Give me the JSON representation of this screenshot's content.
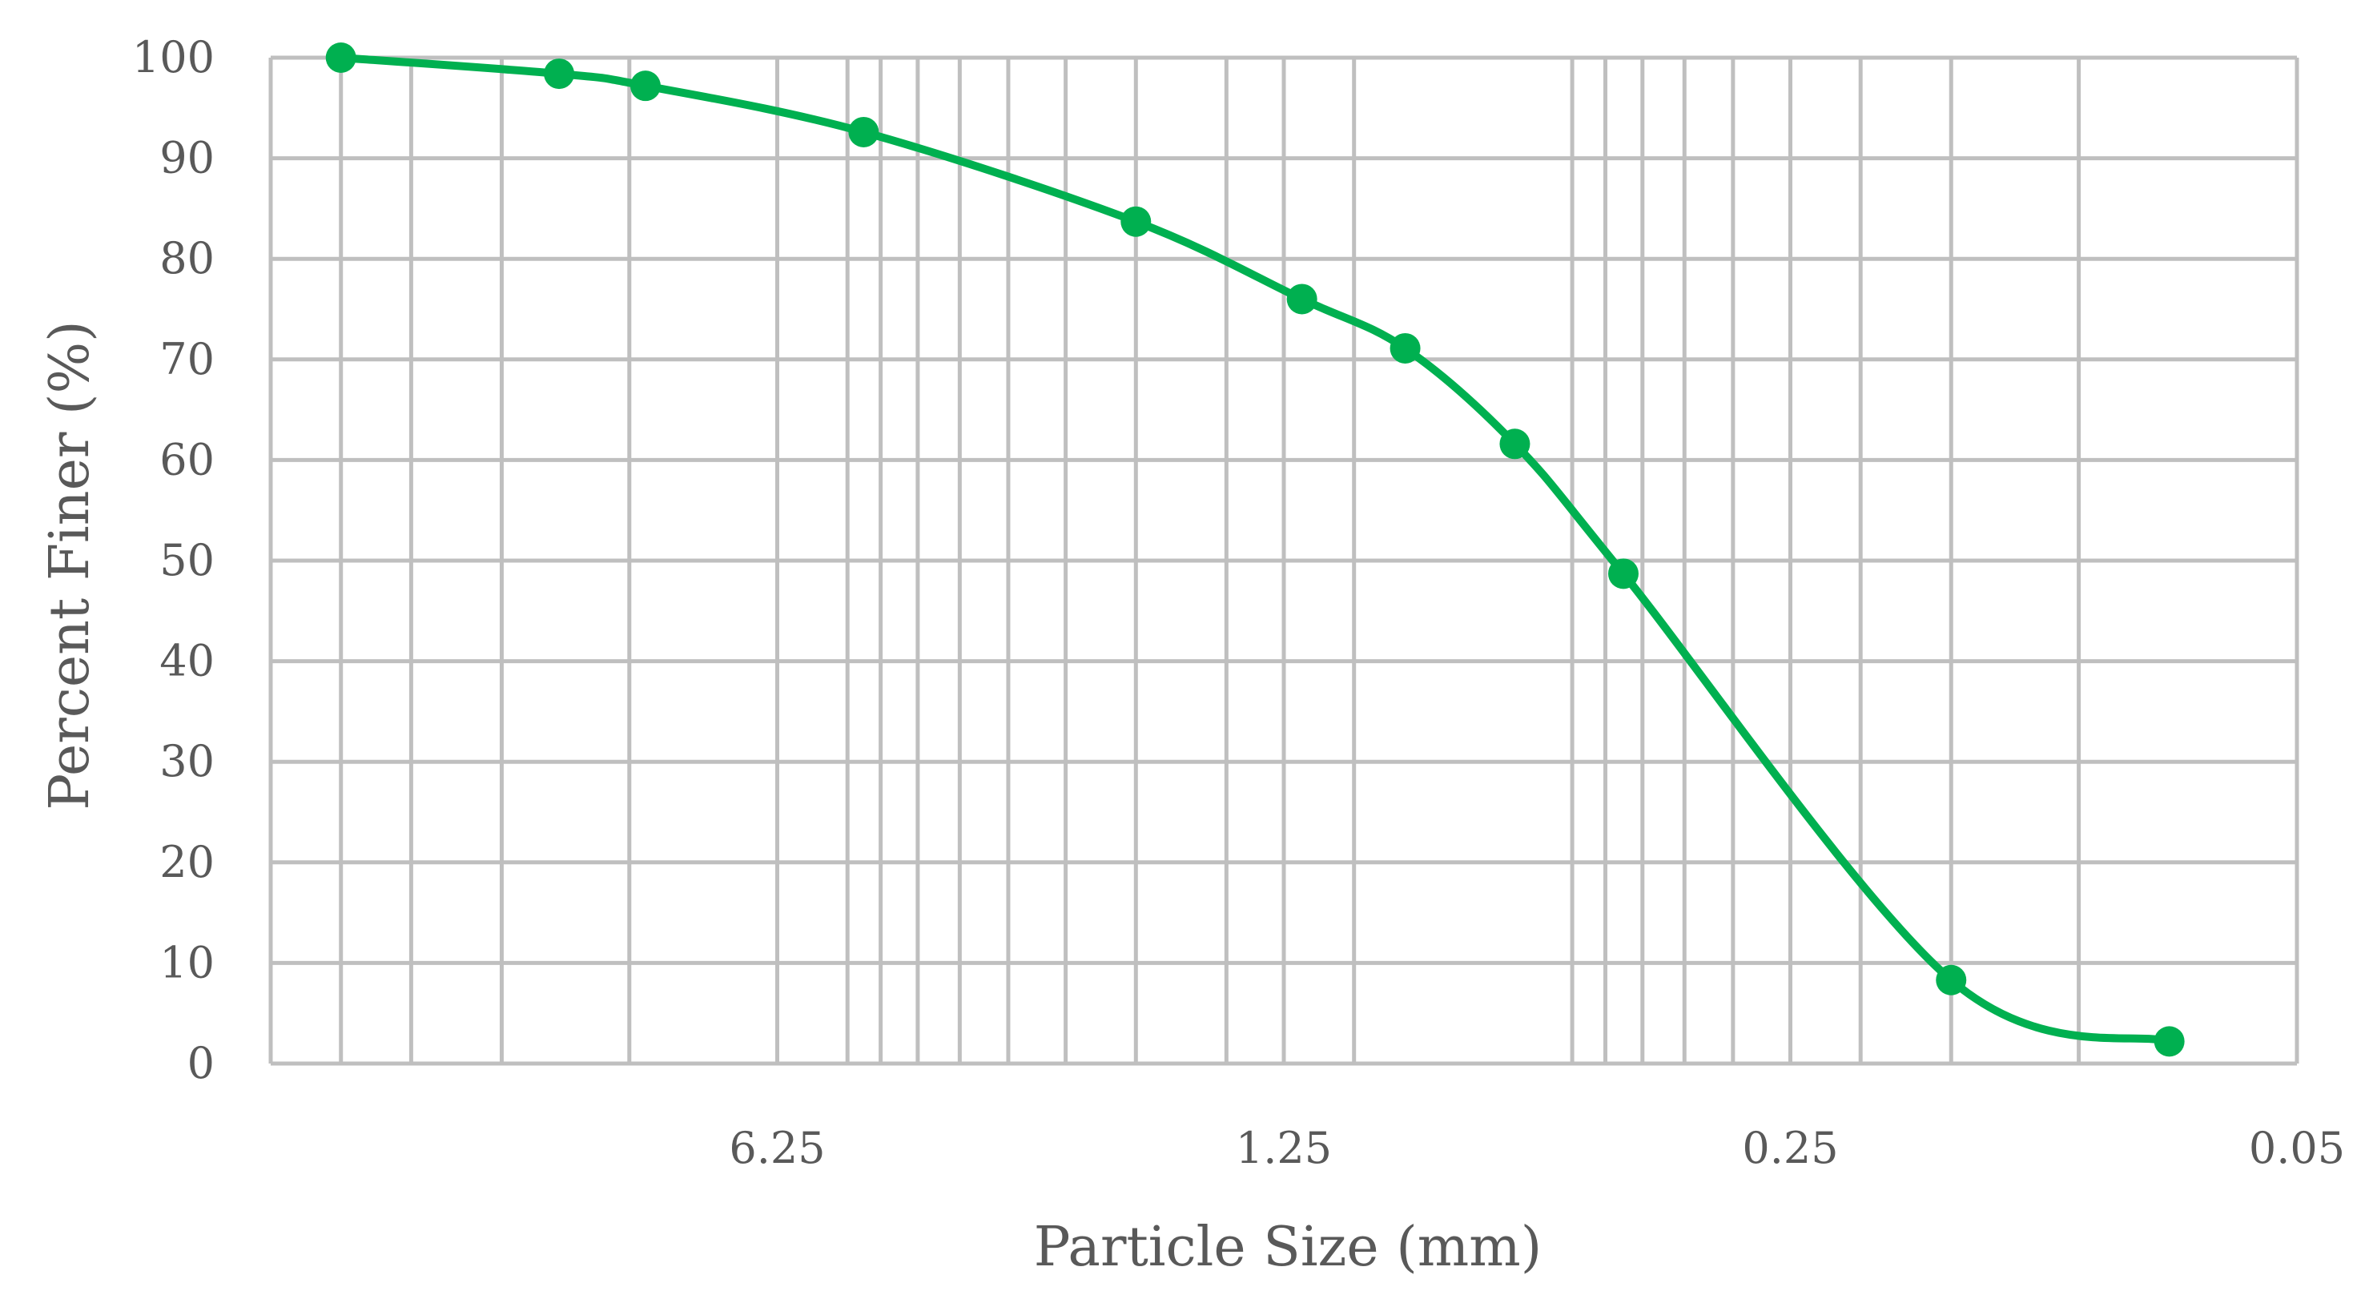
{
  "chart_data": {
    "type": "line",
    "title": "",
    "xlabel": "Particle Size (mm)",
    "ylabel": "Percent Finer (%)",
    "x_scale": "log",
    "x_reversed": true,
    "xlim": [
      31.25,
      0.05
    ],
    "ylim": [
      0,
      100
    ],
    "y_ticks": [
      0,
      10,
      20,
      30,
      40,
      50,
      60,
      70,
      80,
      90,
      100
    ],
    "x_tick_labels": [
      "6.25",
      "1.25",
      "0.25",
      "0.05"
    ],
    "x_tick_values": [
      6.25,
      1.25,
      0.25,
      0.05
    ],
    "x_minor_grid": [
      25,
      20,
      15,
      10,
      6.25,
      5,
      4.5,
      4,
      3.5,
      3,
      2.5,
      2,
      1.5,
      1.25,
      1,
      0.5,
      0.45,
      0.4,
      0.35,
      0.3,
      0.25,
      0.2,
      0.15,
      0.1
    ],
    "grid": true,
    "legend": "none",
    "series": [
      {
        "color": "#00b050",
        "x": [
          25,
          12.5,
          9.5,
          4.75,
          2,
          1.18,
          0.85,
          0.6,
          0.425,
          0.15,
          0.075
        ],
        "y": [
          100,
          98.4,
          97.2,
          92.6,
          83.7,
          76.0,
          71.1,
          61.6,
          48.7,
          8.3,
          2.2
        ]
      }
    ]
  }
}
